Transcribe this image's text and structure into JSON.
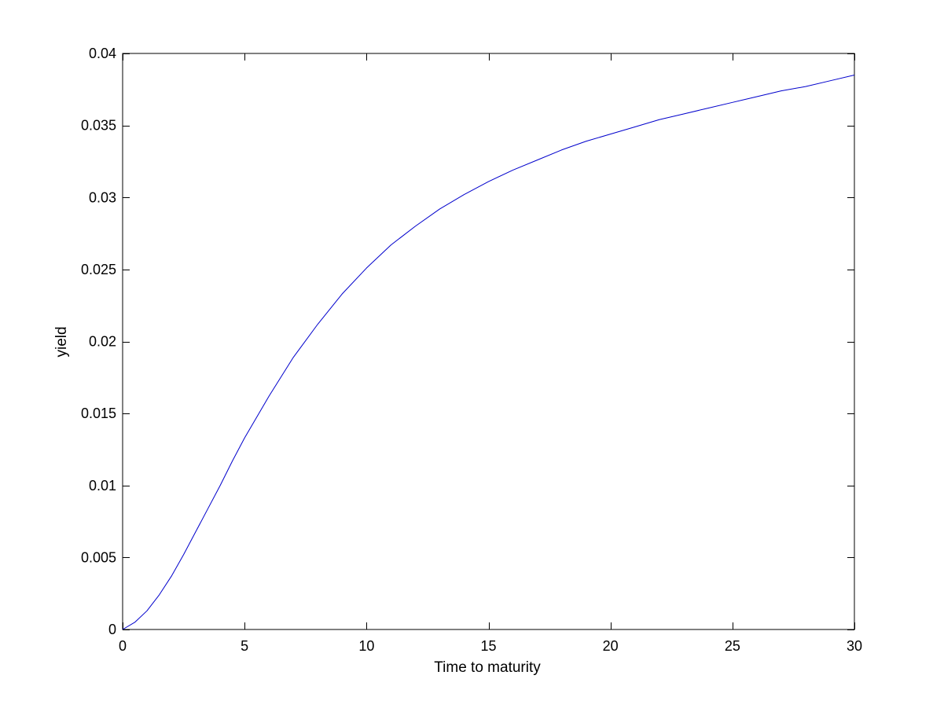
{
  "chart_data": {
    "type": "line",
    "title": "",
    "xlabel": "Time to maturity",
    "ylabel": "yield",
    "xlim": [
      0,
      30
    ],
    "ylim": [
      0,
      0.04
    ],
    "xticks": [
      0,
      5,
      10,
      15,
      20,
      25,
      30
    ],
    "xtick_labels": [
      "0",
      "5",
      "10",
      "15",
      "20",
      "25",
      "30"
    ],
    "yticks": [
      0,
      0.005,
      0.01,
      0.015,
      0.02,
      0.025,
      0.03,
      0.035,
      0.04
    ],
    "ytick_labels": [
      "0",
      "0.005",
      "0.01",
      "0.015",
      "0.02",
      "0.025",
      "0.03",
      "0.035",
      "0.04"
    ],
    "grid": false,
    "legend": "none",
    "series": [
      {
        "color": "#0000cc",
        "x": [
          0,
          0.5,
          1,
          1.5,
          2,
          2.5,
          3,
          3.5,
          4,
          4.5,
          5,
          6,
          7,
          8,
          9,
          10,
          11,
          12,
          13,
          14,
          15,
          16,
          17,
          18,
          19,
          20,
          21,
          22,
          23,
          24,
          25,
          26,
          27,
          28,
          29,
          30
        ],
        "y": [
          0,
          0.0005,
          0.0013,
          0.0024,
          0.0037,
          0.0052,
          0.0068,
          0.0084,
          0.01,
          0.0117,
          0.0133,
          0.0162,
          0.0189,
          0.0212,
          0.0233,
          0.0251,
          0.0267,
          0.028,
          0.0292,
          0.0302,
          0.0311,
          0.0319,
          0.0326,
          0.0333,
          0.0339,
          0.0344,
          0.0349,
          0.0354,
          0.0358,
          0.0362,
          0.0366,
          0.037,
          0.0374,
          0.0377,
          0.0381,
          0.0385
        ]
      }
    ]
  }
}
